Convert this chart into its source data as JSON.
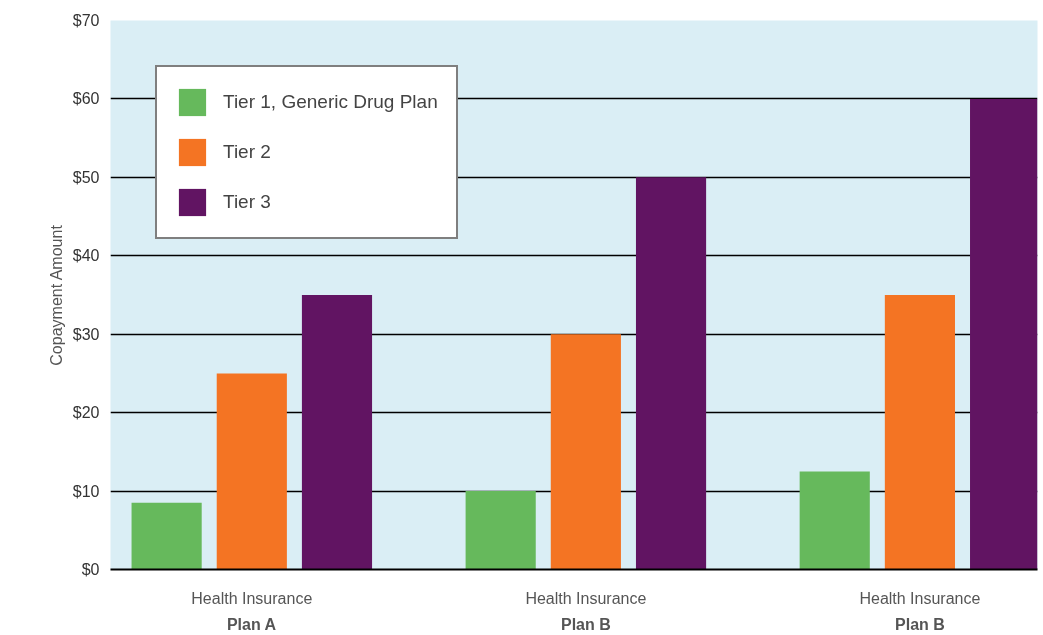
{
  "chart_data": {
    "type": "bar",
    "ylabel": "Copayment Amount",
    "categories": [
      "Health Insurance\nPlan A",
      "Health Insurance\nPlan B",
      "Health Insurance\nPlan B"
    ],
    "series": [
      {
        "name": "Tier 1, Generic Drug Plan",
        "color": "#66b95c",
        "values": [
          8.5,
          10,
          12.5
        ]
      },
      {
        "name": "Tier 2",
        "color": "#f47423",
        "values": [
          25,
          30,
          35
        ]
      },
      {
        "name": "Tier 3",
        "color": "#611462",
        "values": [
          35,
          50,
          60
        ]
      }
    ],
    "ylim": [
      0,
      70
    ],
    "yticks": [
      {
        "value": 0,
        "label": "$0"
      },
      {
        "value": 10,
        "label": "$10"
      },
      {
        "value": 20,
        "label": "$20"
      },
      {
        "value": 30,
        "label": "$30"
      },
      {
        "value": 40,
        "label": "$40"
      },
      {
        "value": 50,
        "label": "$50"
      },
      {
        "value": 60,
        "label": "$60"
      },
      {
        "value": 70,
        "label": "$70"
      }
    ],
    "grid": "y",
    "legend": "top left"
  }
}
